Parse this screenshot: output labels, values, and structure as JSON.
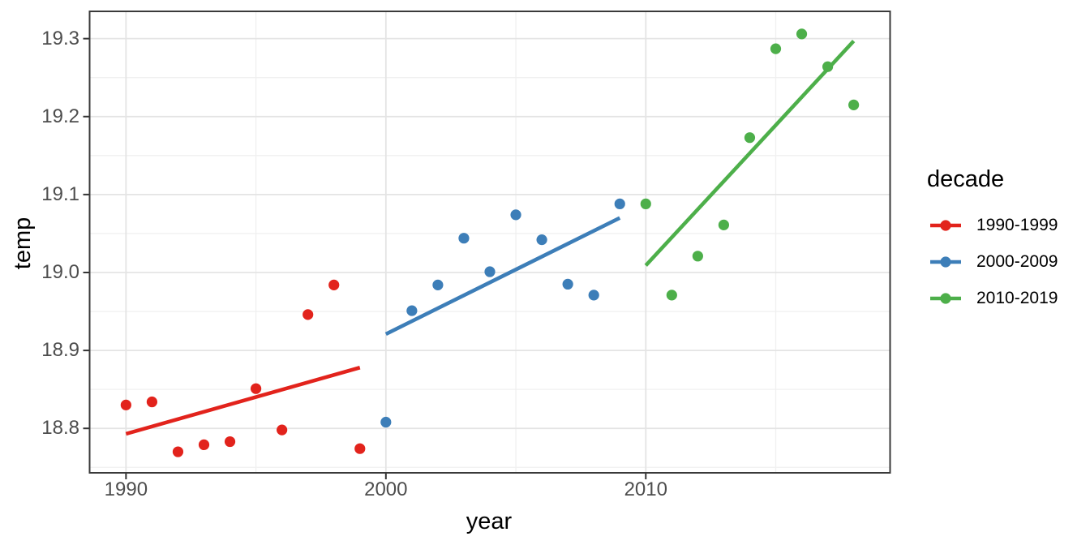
{
  "chart_data": {
    "type": "scatter",
    "title": "",
    "xlabel": "year",
    "ylabel": "temp",
    "grid": "major+minor",
    "background": "#FFFFFF",
    "panel_border_color": "#3A3A3A",
    "grid_major_color": "#E4E4E4",
    "grid_minor_color": "#F0F0F0",
    "tick_color": "#333333",
    "tick_text_color": "#4D4D4D",
    "axes": {
      "xlim": [
        1988.6,
        2019.4
      ],
      "ylim": [
        18.743,
        19.335
      ],
      "x_major_ticks": [
        {
          "value": 1990,
          "label": "1990"
        },
        {
          "value": 2000,
          "label": "2000"
        },
        {
          "value": 2010,
          "label": "2010"
        }
      ],
      "x_minor_ticks": [
        1995,
        2005,
        2015
      ],
      "y_major_ticks": [
        {
          "value": 18.8,
          "label": "18.8"
        },
        {
          "value": 18.9,
          "label": "18.9"
        },
        {
          "value": 19.0,
          "label": "19.0"
        },
        {
          "value": 19.1,
          "label": "19.1"
        },
        {
          "value": 19.2,
          "label": "19.2"
        },
        {
          "value": 19.3,
          "label": "19.3"
        }
      ],
      "y_minor_ticks": [
        18.75,
        18.85,
        18.95,
        19.05,
        19.15,
        19.25
      ]
    },
    "legend": {
      "title": "decade",
      "position": "right"
    },
    "series": [
      {
        "name": "1990-1999",
        "color": "#E2231C",
        "x": [
          1990,
          1991,
          1992,
          1993,
          1994,
          1995,
          1996,
          1997,
          1998,
          1999
        ],
        "y": [
          18.83,
          18.834,
          18.77,
          18.779,
          18.783,
          18.851,
          18.798,
          18.946,
          18.984,
          18.774
        ],
        "trend_line": {
          "x1": 1990,
          "y1": 18.793,
          "x2": 1999,
          "y2": 18.878
        }
      },
      {
        "name": "2000-2009",
        "color": "#3D7EB8",
        "x": [
          2000,
          2001,
          2002,
          2003,
          2004,
          2005,
          2006,
          2007,
          2008,
          2009
        ],
        "y": [
          18.808,
          18.951,
          18.984,
          19.044,
          19.001,
          19.074,
          19.042,
          18.985,
          18.971,
          19.088
        ],
        "trend_line": {
          "x1": 2000,
          "y1": 18.921,
          "x2": 2009,
          "y2": 19.07
        }
      },
      {
        "name": "2010-2019",
        "color": "#4DAF4A",
        "x": [
          2010,
          2011,
          2012,
          2013,
          2014,
          2015,
          2016,
          2017,
          2018
        ],
        "y": [
          19.088,
          18.971,
          19.021,
          19.061,
          19.173,
          19.287,
          19.306,
          19.264,
          19.215
        ],
        "trend_line": {
          "x1": 2010,
          "y1": 19.009,
          "x2": 2018,
          "y2": 19.297
        }
      }
    ]
  }
}
